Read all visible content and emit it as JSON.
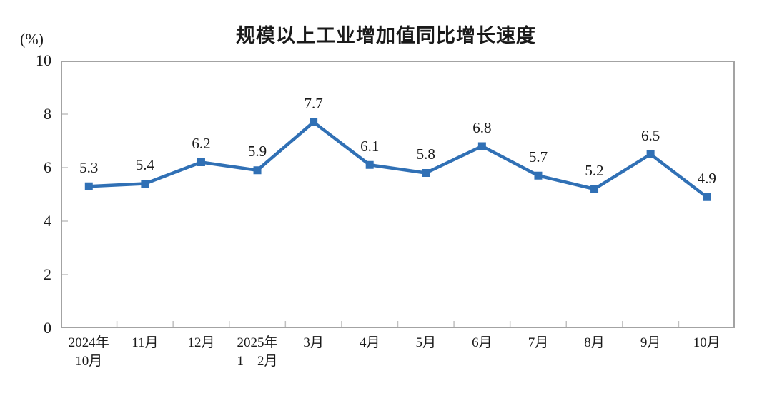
{
  "chart_data": {
    "type": "line",
    "title": "规模以上工业增加值同比增长速度",
    "unit_label": "(%)",
    "categories": [
      "2024年\n10月",
      "11月",
      "12月",
      "2025年\n1—2月",
      "3月",
      "4月",
      "5月",
      "6月",
      "7月",
      "8月",
      "9月",
      "10月"
    ],
    "values": [
      5.3,
      5.4,
      6.2,
      5.9,
      7.7,
      6.1,
      5.8,
      6.8,
      5.7,
      5.2,
      6.5,
      4.9
    ],
    "data_labels": [
      "5.3",
      "5.4",
      "6.2",
      "5.9",
      "7.7",
      "6.1",
      "5.8",
      "6.8",
      "5.7",
      "5.2",
      "6.5",
      "4.9"
    ],
    "ylim": [
      0,
      10
    ],
    "yticks": [
      0,
      2,
      4,
      6,
      8,
      10
    ],
    "grid": false,
    "legend": "none",
    "line_color": "#3070B5",
    "marker": "square",
    "axis_color": "#a3a3a3",
    "tick_color": "#c0c0c0",
    "text_color": "#1a1a1a"
  }
}
